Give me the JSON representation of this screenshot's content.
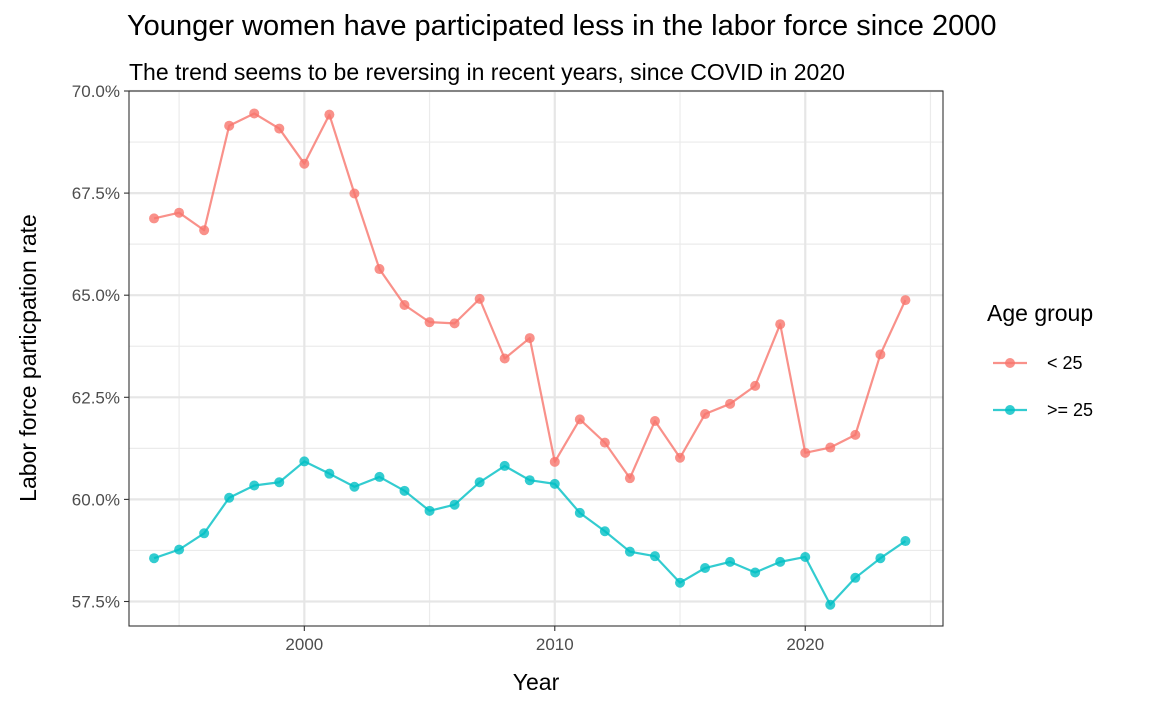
{
  "chart_data": {
    "type": "line",
    "title": "Younger women have participated less in the labor force since 2000",
    "subtitle": "The trend seems to be reversing in recent years, since COVID in 2020",
    "xlabel": "Year",
    "ylabel": "Labor force particpation rate",
    "xlim": [
      1993,
      2025.5
    ],
    "ylim": [
      56.9,
      70.0
    ],
    "x_ticks": [
      2000,
      2010,
      2020
    ],
    "x_tick_labels": [
      "2000",
      "2010",
      "2020"
    ],
    "y_ticks": [
      57.5,
      60.0,
      62.5,
      65.0,
      67.5,
      70.0
    ],
    "y_tick_labels": [
      "57.5%",
      "60.0%",
      "62.5%",
      "65.0%",
      "67.5%",
      "70.0%"
    ],
    "grid": true,
    "legend": {
      "title": "Age group",
      "placement": "right"
    },
    "x": [
      1994,
      1995,
      1996,
      1997,
      1998,
      1999,
      2000,
      2001,
      2002,
      2003,
      2004,
      2005,
      2006,
      2007,
      2008,
      2009,
      2010,
      2011,
      2012,
      2013,
      2014,
      2015,
      2016,
      2017,
      2018,
      2019,
      2020,
      2021,
      2022,
      2023,
      2024
    ],
    "series": [
      {
        "name": "< 25",
        "color": "#F8766D",
        "values": [
          66.88,
          67.02,
          66.59,
          69.15,
          69.45,
          69.08,
          68.22,
          69.42,
          67.49,
          65.64,
          64.76,
          64.34,
          64.31,
          64.91,
          63.45,
          63.95,
          60.92,
          61.96,
          61.39,
          60.52,
          61.92,
          61.02,
          62.09,
          62.34,
          62.78,
          64.29,
          61.14,
          61.27,
          61.58,
          63.55,
          64.88
        ]
      },
      {
        "name": ">= 25",
        "color": "#00BFC4",
        "values": [
          58.56,
          58.77,
          59.17,
          60.04,
          60.34,
          60.42,
          60.93,
          60.63,
          60.31,
          60.55,
          60.21,
          59.72,
          59.87,
          60.42,
          60.82,
          60.47,
          60.38,
          59.67,
          59.22,
          58.72,
          58.61,
          57.96,
          58.32,
          58.47,
          58.21,
          58.47,
          58.59,
          57.42,
          58.08,
          58.56,
          58.98
        ]
      }
    ]
  }
}
